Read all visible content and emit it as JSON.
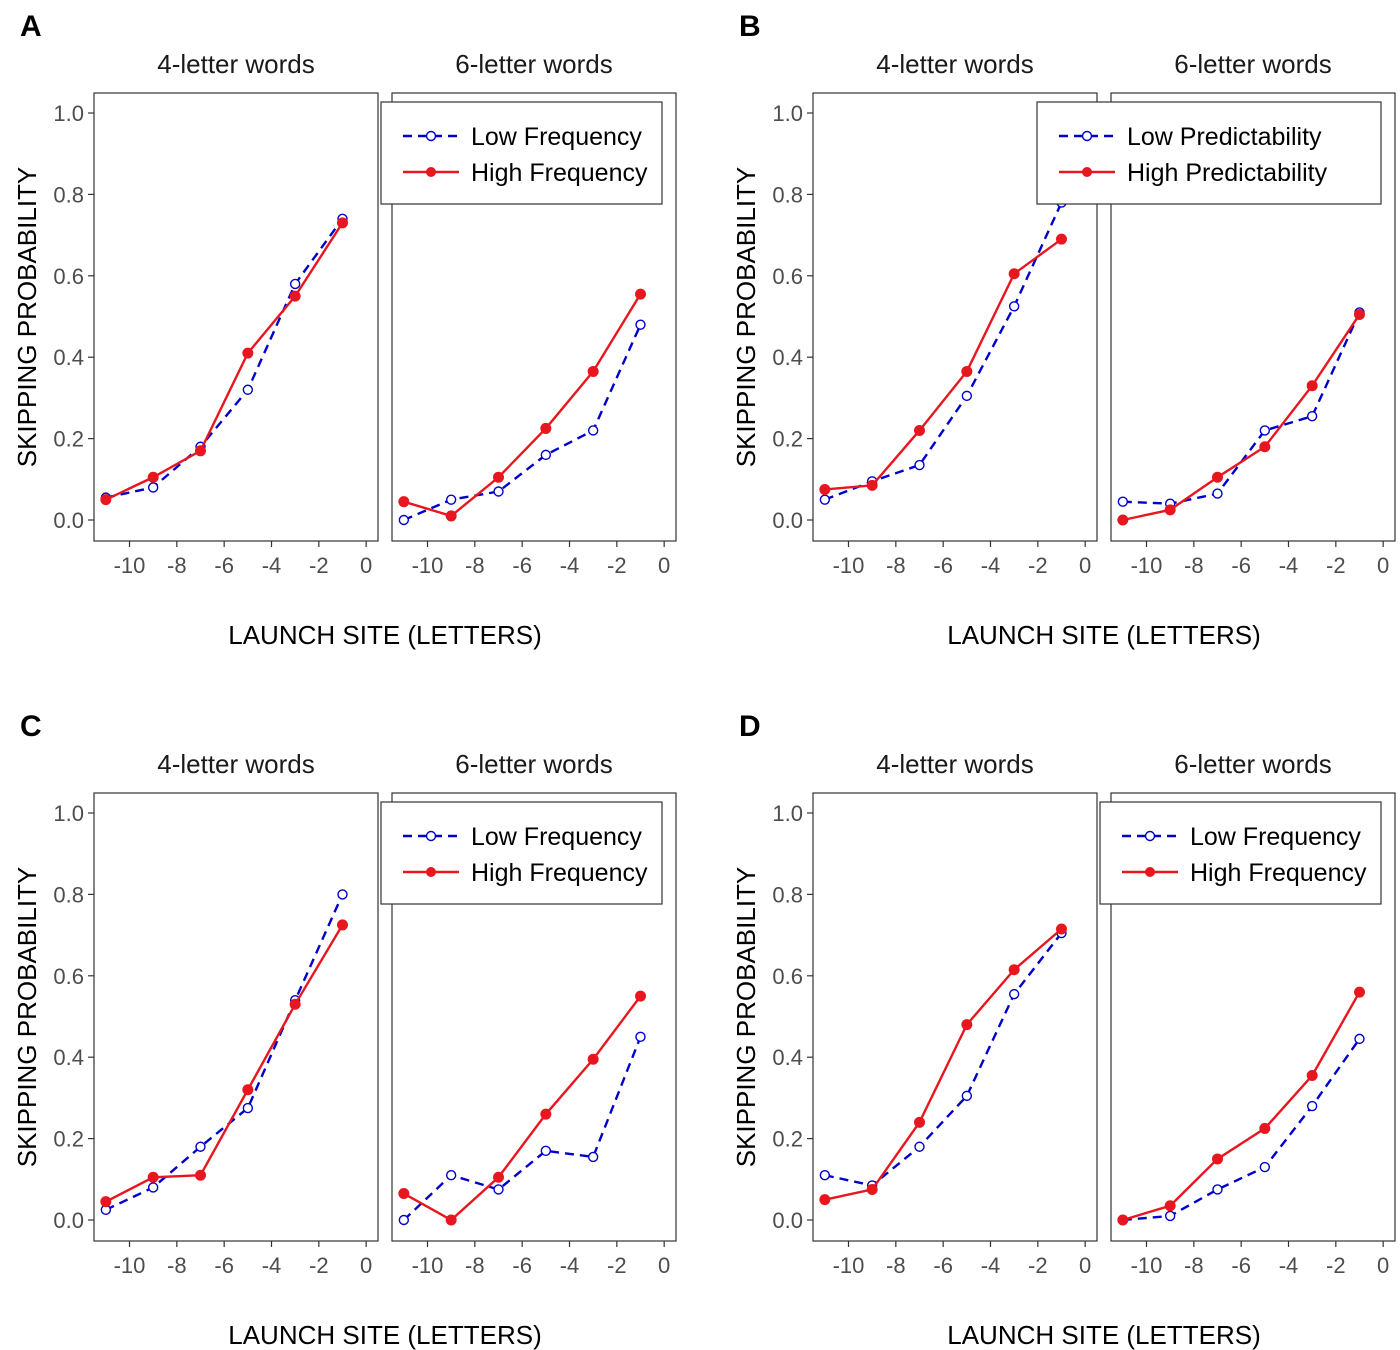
{
  "chart_data": [
    {
      "label": "A",
      "type": "line",
      "ylabel": "SKIPPING PROBABILITY",
      "xlabel": "LAUNCH SITE (LETTERS)",
      "ylim": [
        0,
        1.0
      ],
      "xlim": [
        -11.5,
        0.5
      ],
      "yticks": [
        "0.0",
        "0.2",
        "0.4",
        "0.6",
        "0.8",
        "1.0"
      ],
      "xticks": [
        "-10",
        "-8",
        "-6",
        "-4",
        "-2",
        "0"
      ],
      "legend": {
        "panel": 1,
        "position": "top-right"
      },
      "panels": [
        {
          "title": "4-letter words",
          "x": [
            -11,
            -9,
            -7,
            -5,
            -3,
            -1
          ],
          "series": [
            {
              "name": "Low Frequency",
              "style": "dashed-open",
              "color": "#0000cc",
              "values": [
                0.055,
                0.08,
                0.18,
                0.32,
                0.58,
                0.74
              ]
            },
            {
              "name": "High Frequency",
              "style": "solid-filled",
              "color": "#e8161e",
              "values": [
                0.05,
                0.105,
                0.17,
                0.41,
                0.55,
                0.73
              ]
            }
          ]
        },
        {
          "title": "6-letter words",
          "x": [
            -11,
            -9,
            -7,
            -5,
            -3,
            -1
          ],
          "series": [
            {
              "name": "Low Frequency",
              "style": "dashed-open",
              "color": "#0000cc",
              "values": [
                0.0,
                0.05,
                0.07,
                0.16,
                0.22,
                0.48
              ]
            },
            {
              "name": "High Frequency",
              "style": "solid-filled",
              "color": "#e8161e",
              "values": [
                0.045,
                0.01,
                0.105,
                0.225,
                0.365,
                0.555
              ]
            }
          ]
        }
      ]
    },
    {
      "label": "B",
      "type": "line",
      "ylabel": "SKIPPING PROBABILITY",
      "xlabel": "LAUNCH SITE (LETTERS)",
      "ylim": [
        0,
        1.0
      ],
      "xlim": [
        -11.5,
        0.5
      ],
      "yticks": [
        "0.0",
        "0.2",
        "0.4",
        "0.6",
        "0.8",
        "1.0"
      ],
      "xticks": [
        "-10",
        "-8",
        "-6",
        "-4",
        "-2",
        "0"
      ],
      "legend": {
        "panel": 1,
        "position": "top-right"
      },
      "panels": [
        {
          "title": "4-letter words",
          "x": [
            -11,
            -9,
            -7,
            -5,
            -3,
            -1
          ],
          "series": [
            {
              "name": "Low Predictability",
              "style": "dashed-open",
              "color": "#0000cc",
              "values": [
                0.05,
                0.095,
                0.135,
                0.305,
                0.525,
                0.78
              ]
            },
            {
              "name": "High Predictability",
              "style": "solid-filled",
              "color": "#e8161e",
              "values": [
                0.075,
                0.085,
                0.22,
                0.365,
                0.605,
                0.69
              ]
            }
          ]
        },
        {
          "title": "6-letter words",
          "x": [
            -11,
            -9,
            -7,
            -5,
            -3,
            -1
          ],
          "series": [
            {
              "name": "Low Predictability",
              "style": "dashed-open",
              "color": "#0000cc",
              "values": [
                0.045,
                0.04,
                0.065,
                0.22,
                0.255,
                0.51
              ]
            },
            {
              "name": "High Predictability",
              "style": "solid-filled",
              "color": "#e8161e",
              "values": [
                0.0,
                0.025,
                0.105,
                0.18,
                0.33,
                0.505
              ]
            }
          ]
        }
      ]
    },
    {
      "label": "C",
      "type": "line",
      "ylabel": "SKIPPING PROBABILITY",
      "xlabel": "LAUNCH SITE (LETTERS)",
      "ylim": [
        0,
        1.0
      ],
      "xlim": [
        -11.5,
        0.5
      ],
      "yticks": [
        "0.0",
        "0.2",
        "0.4",
        "0.6",
        "0.8",
        "1.0"
      ],
      "xticks": [
        "-10",
        "-8",
        "-6",
        "-4",
        "-2",
        "0"
      ],
      "legend": {
        "panel": 1,
        "position": "top-right"
      },
      "panels": [
        {
          "title": "4-letter words",
          "x": [
            -11,
            -9,
            -7,
            -5,
            -3,
            -1
          ],
          "series": [
            {
              "name": "Low Frequency",
              "style": "dashed-open",
              "color": "#0000cc",
              "values": [
                0.025,
                0.08,
                0.18,
                0.275,
                0.54,
                0.8
              ]
            },
            {
              "name": "High Frequency",
              "style": "solid-filled",
              "color": "#e8161e",
              "values": [
                0.045,
                0.105,
                0.11,
                0.32,
                0.53,
                0.725
              ]
            }
          ]
        },
        {
          "title": "6-letter words",
          "x": [
            -11,
            -9,
            -7,
            -5,
            -3,
            -1
          ],
          "series": [
            {
              "name": "Low Frequency",
              "style": "dashed-open",
              "color": "#0000cc",
              "values": [
                0.0,
                0.11,
                0.075,
                0.17,
                0.155,
                0.45
              ]
            },
            {
              "name": "High Frequency",
              "style": "solid-filled",
              "color": "#e8161e",
              "values": [
                0.065,
                0.0,
                0.105,
                0.26,
                0.395,
                0.55
              ]
            }
          ]
        }
      ]
    },
    {
      "label": "D",
      "type": "line",
      "ylabel": "SKIPPING PROBABILITY",
      "xlabel": "LAUNCH SITE (LETTERS)",
      "ylim": [
        0,
        1.0
      ],
      "xlim": [
        -11.5,
        0.5
      ],
      "yticks": [
        "0.0",
        "0.2",
        "0.4",
        "0.6",
        "0.8",
        "1.0"
      ],
      "xticks": [
        "-10",
        "-8",
        "-6",
        "-4",
        "-2",
        "0"
      ],
      "legend": {
        "panel": 1,
        "position": "top-right"
      },
      "panels": [
        {
          "title": "4-letter words",
          "x": [
            -11,
            -9,
            -7,
            -5,
            -3,
            -1
          ],
          "series": [
            {
              "name": "Low Frequency",
              "style": "dashed-open",
              "color": "#0000cc",
              "values": [
                0.11,
                0.085,
                0.18,
                0.305,
                0.555,
                0.705
              ]
            },
            {
              "name": "High Frequency",
              "style": "solid-filled",
              "color": "#e8161e",
              "values": [
                0.05,
                0.075,
                0.24,
                0.48,
                0.615,
                0.715
              ]
            }
          ]
        },
        {
          "title": "6-letter words",
          "x": [
            -11,
            -9,
            -7,
            -5,
            -3,
            -1
          ],
          "series": [
            {
              "name": "Low Frequency",
              "style": "dashed-open",
              "color": "#0000cc",
              "values": [
                0.0,
                0.01,
                0.075,
                0.13,
                0.28,
                0.445
              ]
            },
            {
              "name": "High Frequency",
              "style": "solid-filled",
              "color": "#e8161e",
              "values": [
                0.0,
                0.035,
                0.15,
                0.225,
                0.355,
                0.56
              ]
            }
          ]
        }
      ]
    }
  ]
}
